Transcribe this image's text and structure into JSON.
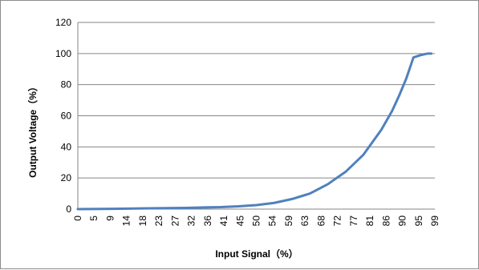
{
  "chart_data": {
    "type": "line",
    "title": "",
    "xlabel": "Input Signal（%）",
    "ylabel": "Output Voltage（%）",
    "ylim": [
      0,
      120
    ],
    "y_ticks": [
      "0",
      "20",
      "40",
      "60",
      "80",
      "100",
      "120"
    ],
    "x_tick_labels": [
      "0",
      "5",
      "9",
      "14",
      "18",
      "23",
      "27",
      "32",
      "36",
      "41",
      "45",
      "50",
      "54",
      "59",
      "63",
      "68",
      "72",
      "77",
      "81",
      "86",
      "90",
      "95",
      "99"
    ],
    "grid": "horizontal",
    "legend": "none",
    "line_color": "#4f81bd",
    "series": [
      {
        "x": [
          0,
          10,
          20,
          30,
          40,
          45,
          50,
          55,
          60,
          65,
          70,
          75,
          80,
          85,
          88,
          90,
          92,
          94,
          96,
          98,
          99
        ],
        "values": [
          0,
          0.2,
          0.5,
          0.8,
          1.3,
          1.8,
          2.6,
          4,
          6.5,
          10,
          16,
          24,
          35,
          51,
          63,
          73,
          84,
          97.5,
          99,
          100,
          100
        ]
      }
    ]
  }
}
